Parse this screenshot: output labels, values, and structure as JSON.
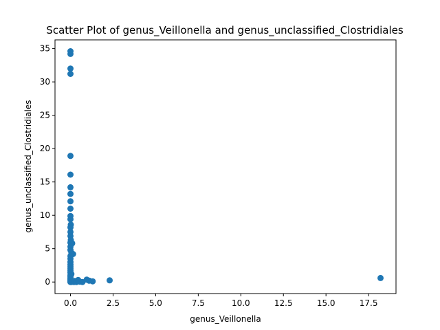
{
  "chart_data": {
    "type": "scatter",
    "title": "Scatter Plot of genus_Veillonella and genus_unclassified_Clostridiales",
    "xlabel": "genus_Veillonella",
    "ylabel": "genus_unclassified_Clostridiales",
    "xlim": [
      -0.91,
      19.11
    ],
    "ylim": [
      -1.73,
      36.3
    ],
    "x_ticks": [
      0,
      2.5,
      5,
      7.5,
      10,
      12.5,
      15,
      17.5
    ],
    "x_tick_labels": [
      "0.0",
      "2.5",
      "5.0",
      "7.5",
      "10.0",
      "12.5",
      "15.0",
      "17.5"
    ],
    "y_ticks": [
      0,
      5,
      10,
      15,
      20,
      25,
      30,
      35
    ],
    "y_tick_labels": [
      "0",
      "5",
      "10",
      "15",
      "20",
      "25",
      "30",
      "35"
    ],
    "grid": false,
    "marker_color": "#1f77b4",
    "series": [
      {
        "points": [
          [
            0.0,
            34.6
          ],
          [
            0.0,
            34.2
          ],
          [
            0.0,
            32.0
          ],
          [
            0.0,
            31.2
          ],
          [
            0.0,
            18.9
          ],
          [
            0.0,
            16.1
          ],
          [
            0.0,
            14.2
          ],
          [
            0.0,
            13.2
          ],
          [
            0.0,
            12.1
          ],
          [
            0.0,
            11.0
          ],
          [
            0.0,
            9.9
          ],
          [
            0.0,
            9.4
          ],
          [
            0.02,
            8.6
          ],
          [
            0.0,
            8.2
          ],
          [
            0.0,
            7.5
          ],
          [
            0.0,
            6.9
          ],
          [
            0.02,
            6.3
          ],
          [
            0.0,
            5.9
          ],
          [
            0.1,
            5.8
          ],
          [
            0.0,
            5.3
          ],
          [
            0.0,
            4.8
          ],
          [
            0.05,
            4.4
          ],
          [
            0.15,
            4.2
          ],
          [
            0.0,
            3.9
          ],
          [
            0.0,
            3.5
          ],
          [
            0.0,
            3.0
          ],
          [
            0.0,
            2.6
          ],
          [
            0.0,
            2.3
          ],
          [
            0.0,
            2.0
          ],
          [
            0.0,
            1.7
          ],
          [
            0.0,
            1.4
          ],
          [
            0.05,
            1.2
          ],
          [
            0.0,
            1.0
          ],
          [
            0.0,
            0.8
          ],
          [
            0.0,
            0.6
          ],
          [
            0.0,
            0.5
          ],
          [
            0.0,
            0.4
          ],
          [
            0.0,
            0.3
          ],
          [
            0.0,
            0.2
          ],
          [
            0.0,
            0.1
          ],
          [
            0.0,
            0.05
          ],
          [
            0.0,
            0.0
          ],
          [
            0.05,
            0.0
          ],
          [
            0.1,
            0.05
          ],
          [
            0.15,
            0.1
          ],
          [
            0.2,
            0.0
          ],
          [
            0.25,
            0.15
          ],
          [
            0.35,
            0.0
          ],
          [
            0.45,
            0.3
          ],
          [
            0.55,
            0.05
          ],
          [
            0.7,
            0.0
          ],
          [
            0.95,
            0.35
          ],
          [
            1.1,
            0.2
          ],
          [
            1.3,
            0.1
          ],
          [
            2.3,
            0.25
          ],
          [
            18.2,
            0.6
          ]
        ]
      }
    ]
  }
}
